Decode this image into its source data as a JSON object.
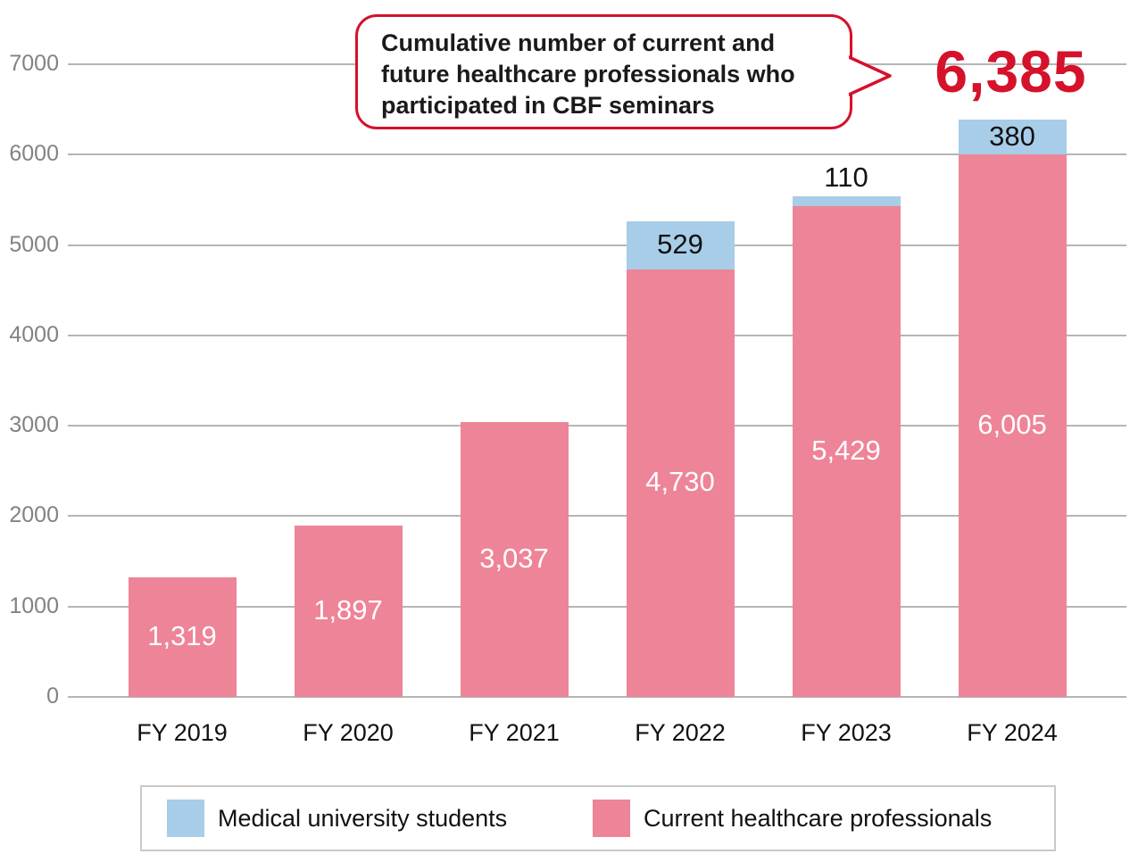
{
  "callout": {
    "lines": [
      "Cumulative number of current and",
      "future healthcare professionals who",
      "participated in CBF seminars"
    ],
    "border_color": "#d5112b"
  },
  "highlight_total": {
    "value": "6,385",
    "color": "#d5112b"
  },
  "chart_data": {
    "type": "bar",
    "stacked": true,
    "title": "Cumulative number of current and future healthcare professionals who participated in CBF seminars",
    "categories": [
      "FY 2019",
      "FY 2020",
      "FY 2021",
      "FY 2022",
      "FY 2023",
      "FY 2024"
    ],
    "series": [
      {
        "name": "Current healthcare professionals",
        "color": "#ee8498",
        "values": [
          1319,
          1897,
          3037,
          4730,
          5429,
          6005
        ],
        "labels": [
          "1,319",
          "1,897",
          "3,037",
          "4,730",
          "5,429",
          "6,005"
        ]
      },
      {
        "name": "Medical university students",
        "color": "#a8cde8",
        "values": [
          0,
          0,
          0,
          529,
          110,
          380
        ],
        "labels": [
          "",
          "",
          "",
          "529",
          "110",
          "380"
        ]
      }
    ],
    "totals": [
      1319,
      1897,
      3037,
      5259,
      5539,
      6385
    ],
    "highlight_total_fy2024": "6,385",
    "xlabel": "",
    "ylabel": "",
    "ylim": [
      0,
      7000
    ],
    "yticks": [
      0,
      1000,
      2000,
      3000,
      4000,
      5000,
      6000,
      7000
    ],
    "grid": true,
    "legend_position": "bottom"
  },
  "legend": {
    "items": [
      {
        "label": "Medical university students",
        "color": "#a8cde8"
      },
      {
        "label": "Current healthcare professionals",
        "color": "#ee8498"
      }
    ]
  },
  "colors": {
    "gridline": "#b5b5b5",
    "ytick_text": "#828282",
    "bar_pink": "#ee8498",
    "bar_blue": "#a8cde8",
    "accent_red": "#d5112b"
  }
}
